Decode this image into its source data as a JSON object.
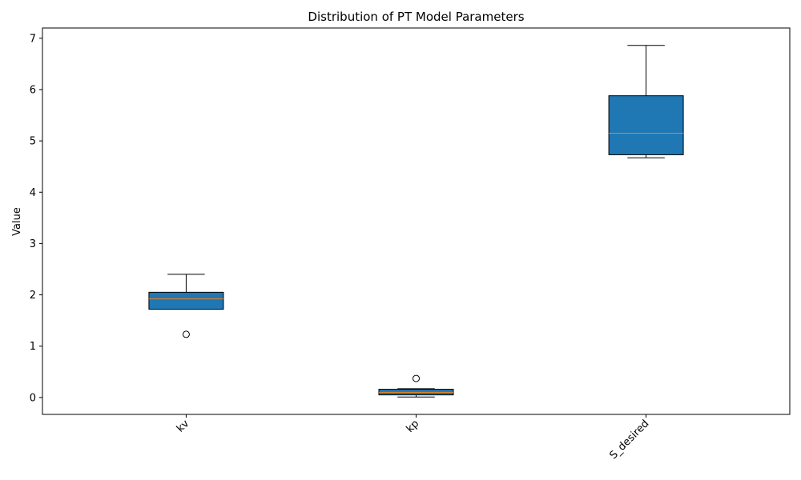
{
  "chart_data": {
    "type": "boxplot",
    "title": "Distribution of PT Model Parameters",
    "xlabel": "",
    "ylabel": "Value",
    "ylim": [
      -0.33,
      7.2
    ],
    "yticks": [
      0,
      1,
      2,
      3,
      4,
      5,
      6,
      7
    ],
    "categories": [
      "kv",
      "kp",
      "S_desired"
    ],
    "boxes": [
      {
        "category": "kv",
        "whisker_low": 1.72,
        "q1": 1.72,
        "median": 1.92,
        "q3": 2.05,
        "whisker_high": 2.4,
        "outliers": [
          1.23
        ]
      },
      {
        "category": "kp",
        "whisker_low": 0.01,
        "q1": 0.05,
        "median": 0.1,
        "q3": 0.16,
        "whisker_high": 0.17,
        "outliers": [
          0.37
        ]
      },
      {
        "category": "S_desired",
        "whisker_low": 4.67,
        "q1": 4.73,
        "median": 5.15,
        "q3": 5.88,
        "whisker_high": 6.86,
        "outliers": []
      }
    ],
    "colors": {
      "box_fill": "#1f77b4",
      "median": "#ff7f0e",
      "edge": "#000000"
    },
    "grid": false,
    "xtick_rotation": 45
  }
}
